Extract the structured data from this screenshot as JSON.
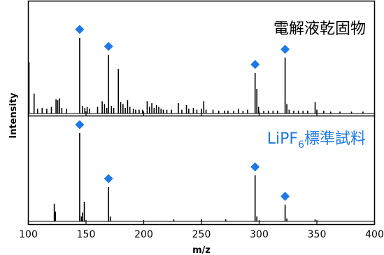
{
  "chart_data": {
    "type": "line",
    "xlabel": "m/z",
    "ylabel": "Intensity",
    "xlim": [
      100,
      400
    ],
    "x_ticks": [
      "100",
      "150",
      "200",
      "250",
      "300",
      "350",
      "400"
    ],
    "grid": false,
    "marker_color": "#1e78e6",
    "panels": [
      {
        "label": "電解液乾固物",
        "label_color": "#000000",
        "series": [
          {
            "peaks": [
              [
                100.6,
                0.54
              ],
              [
                105,
                0.21
              ],
              [
                108,
                0.05
              ],
              [
                112,
                0.06
              ],
              [
                116,
                0.05
              ],
              [
                120,
                0.07
              ],
              [
                124,
                0.15
              ],
              [
                125.5,
                0.14
              ],
              [
                127,
                0.16
              ],
              [
                129,
                0.06
              ],
              [
                133,
                0.05
              ],
              [
                144.5,
                0.8
              ],
              [
                147,
                0.08
              ],
              [
                149,
                0.06
              ],
              [
                151,
                0.07
              ],
              [
                153,
                0.05
              ],
              [
                160,
                0.07
              ],
              [
                164,
                0.13
              ],
              [
                166,
                0.1
              ],
              [
                168,
                0.06
              ],
              [
                169.5,
                0.62
              ],
              [
                172,
                0.08
              ],
              [
                174,
                0.06
              ],
              [
                178,
                0.47
              ],
              [
                180,
                0.12
              ],
              [
                182,
                0.1
              ],
              [
                184,
                0.06
              ],
              [
                186,
                0.14
              ],
              [
                188,
                0.07
              ],
              [
                191,
                0.05
              ],
              [
                193,
                0.04
              ],
              [
                196,
                0.04
              ],
              [
                199,
                0.04
              ],
              [
                203,
                0.13
              ],
              [
                205,
                0.07
              ],
              [
                207,
                0.11
              ],
              [
                209,
                0.06
              ],
              [
                211,
                0.09
              ],
              [
                213,
                0.07
              ],
              [
                215,
                0.05
              ],
              [
                217,
                0.04
              ],
              [
                220,
                0.04
              ],
              [
                224,
                0.04
              ],
              [
                230,
                0.11
              ],
              [
                233,
                0.04
              ],
              [
                237,
                0.09
              ],
              [
                239,
                0.05
              ],
              [
                243,
                0.06
              ],
              [
                246,
                0.04
              ],
              [
                250,
                0.05
              ],
              [
                252,
                0.13
              ],
              [
                254,
                0.04
              ],
              [
                260,
                0.04
              ],
              [
                265,
                0.03
              ],
              [
                270,
                0.03
              ],
              [
                273,
                0.03
              ],
              [
                278,
                0.03
              ],
              [
                282,
                0.05
              ],
              [
                286,
                0.03
              ],
              [
                290,
                0.04
              ],
              [
                296.5,
                0.43
              ],
              [
                298,
                0.26
              ],
              [
                299.5,
                0.07
              ],
              [
                304,
                0.03
              ],
              [
                308,
                0.03
              ],
              [
                312,
                0.03
              ],
              [
                316,
                0.03
              ],
              [
                322.5,
                0.59
              ],
              [
                324,
                0.1
              ],
              [
                326,
                0.04
              ],
              [
                330,
                0.03
              ],
              [
                334,
                0.03
              ],
              [
                338,
                0.03
              ],
              [
                342,
                0.03
              ],
              [
                348.5,
                0.12
              ],
              [
                350,
                0.04
              ],
              [
                356,
                0.03
              ],
              [
                362,
                0.02
              ],
              [
                370,
                0.02
              ],
              [
                380,
                0.02
              ],
              [
                390,
                0.02
              ]
            ]
          }
        ],
        "markers": [
          144.5,
          169.5,
          296.5,
          322.5
        ]
      },
      {
        "label": "LiPF6標準試料",
        "label_color": "#1e78e6",
        "series": [
          {
            "peaks": [
              [
                122.5,
                0.18
              ],
              [
                123.5,
                0.1
              ],
              [
                146,
                0.05
              ],
              [
                147,
                0.09
              ],
              [
                144.5,
                0.9
              ],
              [
                148.5,
                0.2
              ],
              [
                169.5,
                0.35
              ],
              [
                171,
                0.05
              ],
              [
                226,
                0.02
              ],
              [
                250,
                0.02
              ],
              [
                271,
                0.02
              ],
              [
                296.5,
                0.47
              ],
              [
                298,
                0.05
              ],
              [
                322.5,
                0.17
              ],
              [
                324,
                0.03
              ],
              [
                348.5,
                0.02
              ]
            ]
          }
        ],
        "markers": [
          144.5,
          169.5,
          296.5,
          322.5
        ]
      }
    ]
  }
}
